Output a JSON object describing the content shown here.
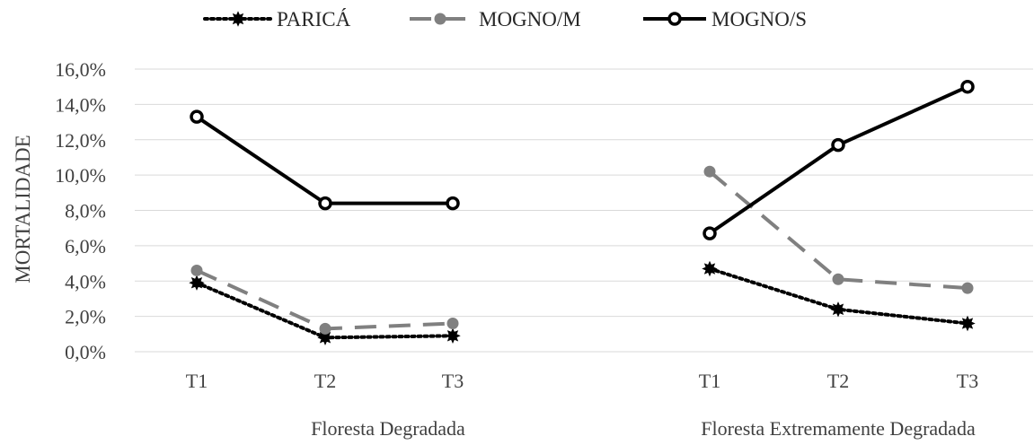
{
  "chart_data": {
    "type": "line",
    "ylabel": "MORTALIDADE",
    "ylim": [
      0,
      16
    ],
    "yticks": [
      "0,0%",
      "2,0%",
      "4,0%",
      "6,0%",
      "8,0%",
      "10,0%",
      "12,0%",
      "14,0%",
      "16,0%"
    ],
    "groups": [
      {
        "label": "Floresta Degradada",
        "categories": [
          "T1",
          "T2",
          "T3"
        ]
      },
      {
        "label": "Floresta Extremamente Degradada",
        "categories": [
          "T1",
          "T2",
          "T3"
        ]
      }
    ],
    "series": [
      {
        "name": "PARICÁ",
        "style": "dotted",
        "marker": "star",
        "color": "#000000",
        "groups": [
          [
            3.9,
            0.8,
            0.9
          ],
          [
            4.7,
            2.4,
            1.6
          ]
        ]
      },
      {
        "name": "MOGNO/M",
        "style": "dashed",
        "marker": "filled-circle",
        "color": "#808080",
        "groups": [
          [
            4.6,
            1.3,
            1.6
          ],
          [
            10.2,
            4.1,
            3.6
          ]
        ]
      },
      {
        "name": "MOGNO/S",
        "style": "solid",
        "marker": "open-circle",
        "color": "#000000",
        "groups": [
          [
            13.3,
            8.4,
            8.4
          ],
          [
            6.7,
            11.7,
            15.0
          ]
        ]
      }
    ],
    "grid": true,
    "legend_position": "top-center"
  }
}
